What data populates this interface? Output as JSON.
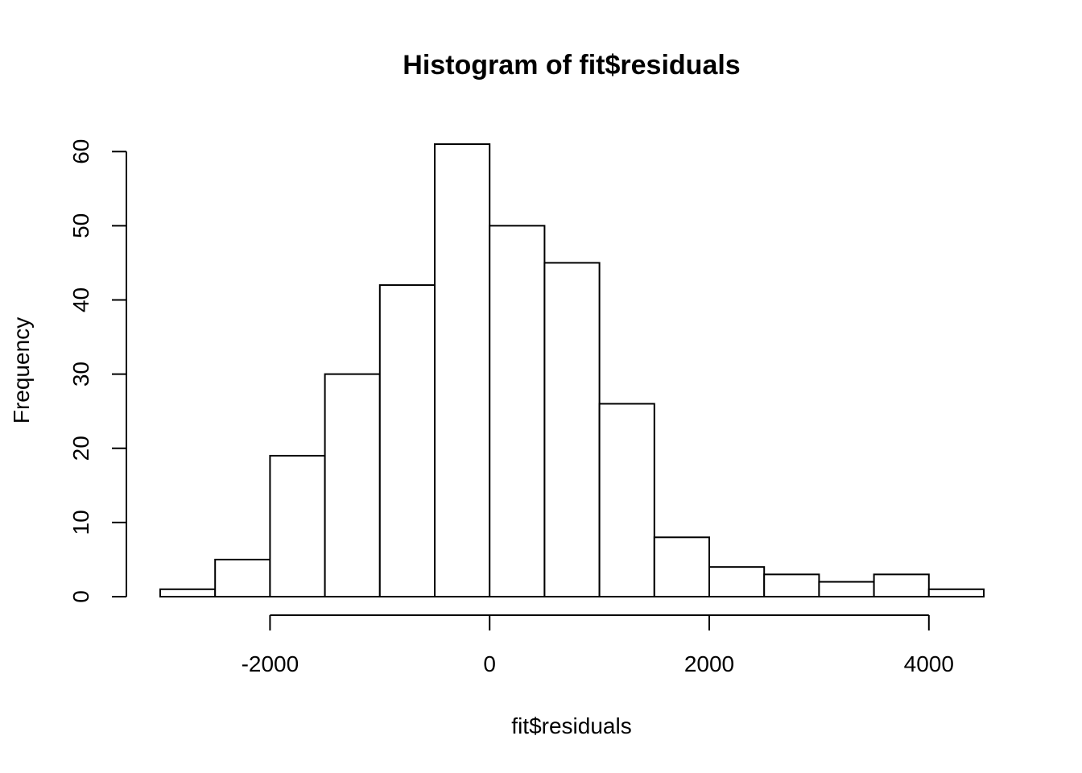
{
  "chart_data": {
    "type": "bar",
    "title": "Histogram of fit$residuals",
    "xlabel": "fit$residuals",
    "ylabel": "Frequency",
    "bins": [
      {
        "start": -3000,
        "end": -2500,
        "count": 1
      },
      {
        "start": -2500,
        "end": -2000,
        "count": 5
      },
      {
        "start": -2000,
        "end": -1500,
        "count": 19
      },
      {
        "start": -1500,
        "end": -1000,
        "count": 30
      },
      {
        "start": -1000,
        "end": -500,
        "count": 42
      },
      {
        "start": -500,
        "end": 0,
        "count": 61
      },
      {
        "start": 0,
        "end": 500,
        "count": 50
      },
      {
        "start": 500,
        "end": 1000,
        "count": 45
      },
      {
        "start": 1000,
        "end": 1500,
        "count": 26
      },
      {
        "start": 1500,
        "end": 2000,
        "count": 8
      },
      {
        "start": 2000,
        "end": 2500,
        "count": 4
      },
      {
        "start": 2500,
        "end": 3000,
        "count": 3
      },
      {
        "start": 3000,
        "end": 3500,
        "count": 2
      },
      {
        "start": 3500,
        "end": 4000,
        "count": 3
      },
      {
        "start": 4000,
        "end": 4500,
        "count": 1
      }
    ],
    "xlim": [
      -3000,
      4500
    ],
    "ylim": [
      0,
      61
    ],
    "x_ticks": [
      -2000,
      0,
      2000,
      4000
    ],
    "x_tick_labels": [
      "-2000",
      "0",
      "2000",
      "4000"
    ],
    "y_ticks": [
      0,
      10,
      20,
      30,
      40,
      50,
      60
    ],
    "y_tick_labels": [
      "0",
      "10",
      "20",
      "30",
      "40",
      "50",
      "60"
    ],
    "grid": false,
    "legend": "none",
    "bar_fill": "#ffffff",
    "bar_stroke": "#000000"
  }
}
